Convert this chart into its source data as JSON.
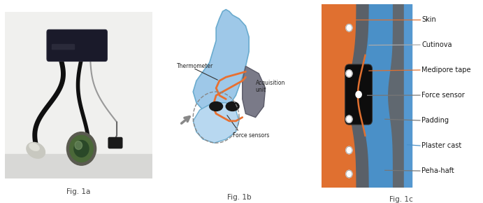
{
  "fig_width": 6.91,
  "fig_height": 2.9,
  "dpi": 100,
  "background_color": "#ffffff",
  "panel_labels": [
    "Fig. 1a",
    "Fig. 1b",
    "Fig. 1c"
  ],
  "label_fontsize": 7.5,
  "panel_c_labels": [
    {
      "text": "Skin",
      "color_line": "#e07030",
      "line_type": "orange"
    },
    {
      "text": "Cutinova",
      "color_line": "#aaaaaa",
      "line_type": "gray"
    },
    {
      "text": "Medipore tape",
      "color_line": "#e07030",
      "line_type": "orange"
    },
    {
      "text": "Force sensor",
      "color_line": "#555555",
      "line_type": "gray"
    },
    {
      "text": "Padding",
      "color_line": "#555555",
      "line_type": "gray"
    },
    {
      "text": "Plaster cast",
      "color_line": "#4a90c8",
      "line_type": "blue"
    },
    {
      "text": "Peha-haft",
      "color_line": "#555555",
      "line_type": "gray"
    }
  ]
}
